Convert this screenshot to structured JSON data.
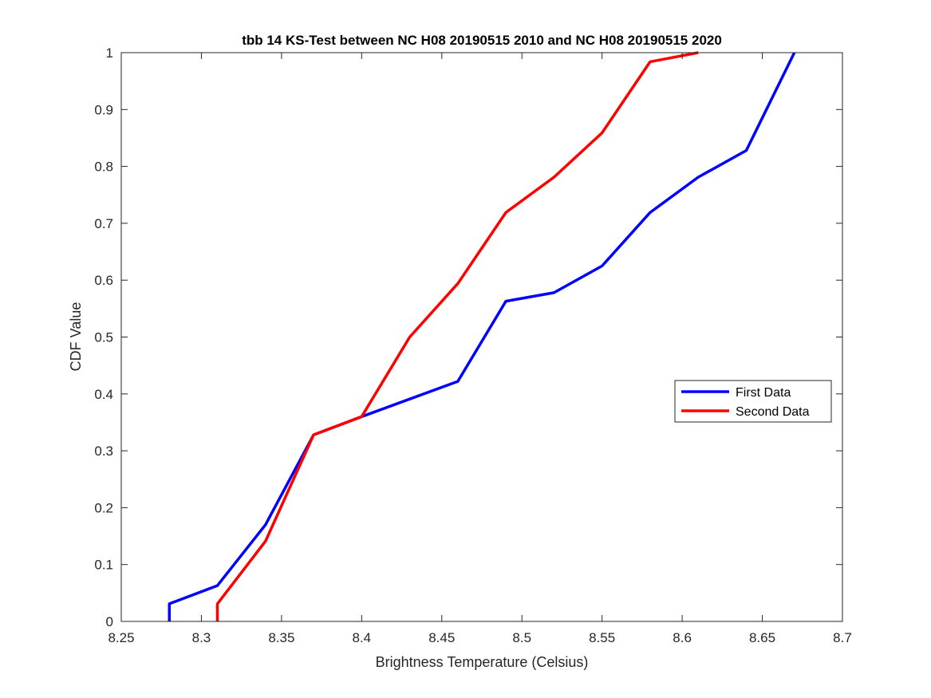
{
  "chart_data": {
    "type": "line",
    "title": "tbb 14 KS-Test between NC H08 20190515 2010 and NC H08 20190515 2020",
    "xlabel": "Brightness Temperature (Celsius)",
    "ylabel": "CDF Value",
    "xlim": [
      8.25,
      8.7
    ],
    "ylim": [
      0,
      1
    ],
    "xticks": [
      "8.25",
      "8.3",
      "8.35",
      "8.4",
      "8.45",
      "8.5",
      "8.55",
      "8.6",
      "8.65",
      "8.7"
    ],
    "yticks": [
      "0",
      "0.1",
      "0.2",
      "0.3",
      "0.4",
      "0.5",
      "0.6",
      "0.7",
      "0.8",
      "0.9",
      "1"
    ],
    "grid": false,
    "legend_position": "right",
    "series": [
      {
        "name": "First Data",
        "color": "#0000ff",
        "x": [
          8.28,
          8.28,
          8.31,
          8.34,
          8.37,
          8.4,
          8.46,
          8.49,
          8.52,
          8.55,
          8.58,
          8.61,
          8.64,
          8.67
        ],
        "y": [
          0.0,
          0.031,
          0.063,
          0.17,
          0.328,
          0.36,
          0.422,
          0.563,
          0.578,
          0.625,
          0.719,
          0.781,
          0.828,
          1.0
        ]
      },
      {
        "name": "Second Data",
        "color": "#ff0000",
        "x": [
          8.31,
          8.31,
          8.34,
          8.37,
          8.4,
          8.43,
          8.46,
          8.49,
          8.52,
          8.55,
          8.58,
          8.61
        ],
        "y": [
          0.0,
          0.031,
          0.141,
          0.328,
          0.36,
          0.5,
          0.594,
          0.719,
          0.781,
          0.859,
          0.984,
          1.0
        ]
      }
    ]
  }
}
